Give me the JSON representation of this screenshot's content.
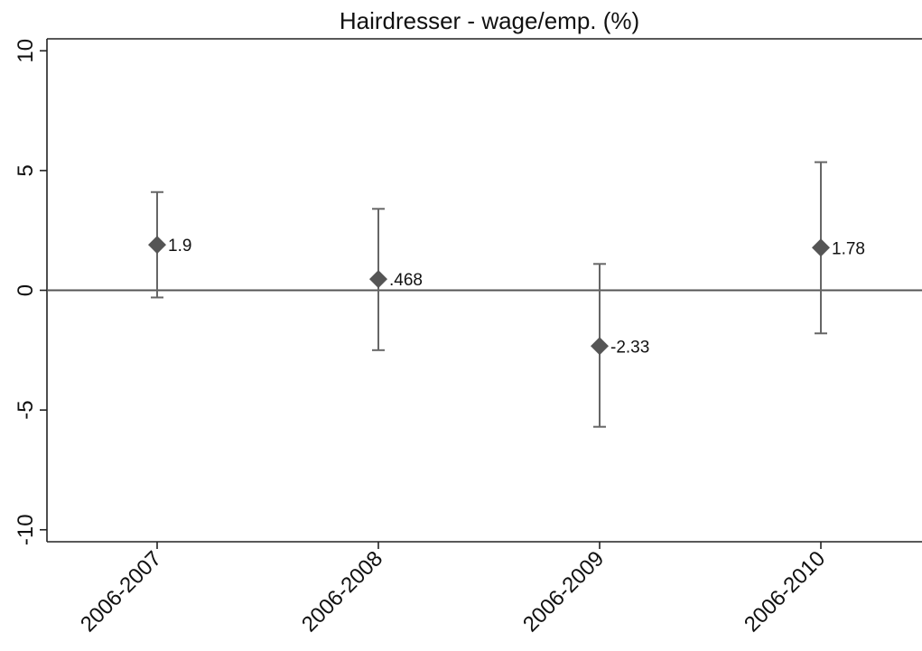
{
  "chart_data": {
    "type": "scatter",
    "title": "Hairdresser - wage/emp. (%)",
    "xlabel": "",
    "ylabel": "",
    "categories": [
      "2006-2007",
      "2006-2008",
      "2006-2009",
      "2006-2010"
    ],
    "series": [
      {
        "values": [
          1.9,
          0.468,
          -2.33,
          1.78
        ],
        "labels": [
          "1.9",
          ".468",
          "-2.33",
          "1.78"
        ],
        "ci_lower": [
          -0.3,
          -2.5,
          -5.7,
          -1.8
        ],
        "ci_upper": [
          4.1,
          3.4,
          1.1,
          5.35
        ]
      }
    ],
    "ylim": [
      -10.5,
      10.5
    ],
    "yticks": [
      10,
      5,
      0,
      -5,
      -10
    ],
    "ytick_labels": [
      "10",
      "5",
      "0",
      "-5",
      "-10"
    ],
    "reference_line_y": 0,
    "grid": false,
    "legend": "none",
    "marker": "diamond",
    "colors": {
      "marker": "#555555",
      "errorbar": "#666666",
      "axis": "#222222",
      "reference_line": "#555555"
    }
  }
}
